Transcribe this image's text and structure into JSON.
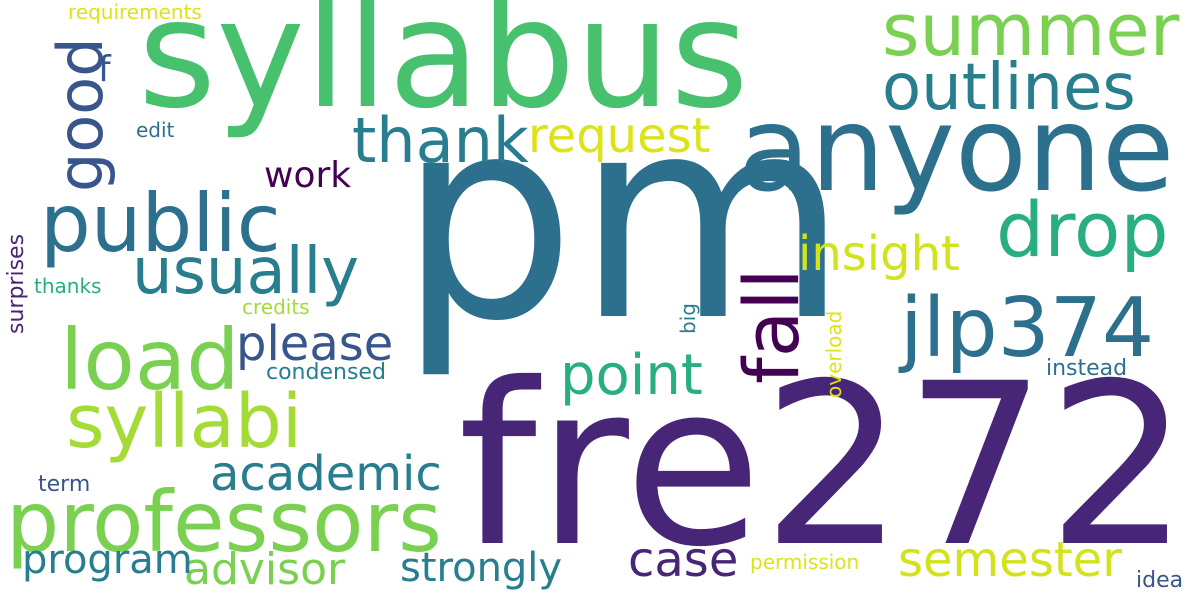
{
  "words": {
    "pm": "pm",
    "fre272": "fre272",
    "syllabus": "syllabus",
    "anyone": "anyone",
    "professors": "professors",
    "public": "public",
    "summer": "summer",
    "outlines": "outlines",
    "load": "load",
    "syllabi": "syllabi",
    "jlp374": "jlp374",
    "drop": "drop",
    "fall": "fall",
    "usually": "usually",
    "good": "good",
    "thank": "thank",
    "point": "point",
    "academic": "academic",
    "please": "please",
    "insight": "insight",
    "semester": "semester",
    "request": "request",
    "case": "case",
    "advisor": "advisor",
    "strongly": "strongly",
    "program": "program",
    "work": "work",
    "f": "f",
    "condensed": "condensed",
    "instead": "instead",
    "permission": "permission",
    "requirements": "requirements",
    "edit": "edit",
    "thanks": "thanks",
    "credits": "credits",
    "surprises": "surprises",
    "big": "big",
    "overload": "overload",
    "term": "term",
    "idea": "idea"
  },
  "colors": {
    "dark_purple": "#482677",
    "deep_purple": "#440154",
    "steel_blue": "#2d708e",
    "slate_blue": "#39568c",
    "teal": "#287d8e",
    "sea_green": "#29af7f",
    "mid_green": "#48c16e",
    "light_green": "#7ad151",
    "lime": "#a5db36",
    "yellow": "#d2e21b",
    "pale_yellow": "#dde318"
  }
}
